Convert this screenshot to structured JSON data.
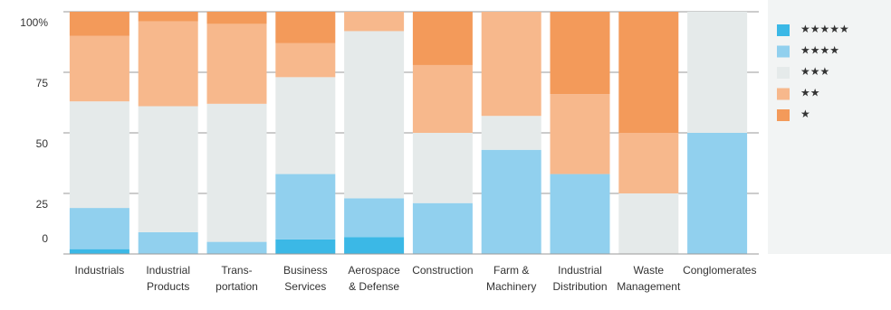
{
  "chart_data": {
    "type": "stacked_bar",
    "categories": [
      "Industrials",
      "Industrial\nProducts",
      "Trans-\nportation",
      "Business\nServices",
      "Aerospace\n& Defense",
      "Construction",
      "Farm &\nMachinery",
      "Industrial\nDistribution",
      "Waste\nManagement",
      "Conglomerates"
    ],
    "series": [
      {
        "name": "★★★★★",
        "color": "#3bb8e6",
        "values": [
          2,
          0,
          0,
          6,
          7,
          0,
          0,
          0,
          0,
          0
        ]
      },
      {
        "name": "★★★★",
        "color": "#91d0ee",
        "values": [
          17,
          9,
          5,
          27,
          16,
          21,
          43,
          33,
          0,
          50
        ]
      },
      {
        "name": "★★★",
        "color": "#e5eaea",
        "values": [
          44,
          52,
          57,
          40,
          69,
          29,
          14,
          0,
          25,
          50
        ]
      },
      {
        "name": "★★",
        "color": "#f7b88c",
        "values": [
          27,
          35,
          33,
          14,
          8,
          28,
          43,
          33,
          25,
          0
        ]
      },
      {
        "name": "★",
        "color": "#f39a5a",
        "values": [
          10,
          4,
          5,
          13,
          0,
          22,
          0,
          34,
          50,
          0
        ]
      }
    ],
    "ylim": [
      0,
      100
    ],
    "yticks": [
      0,
      25,
      50,
      75,
      {
        "value": 100,
        "label": "100%"
      }
    ],
    "grid": true
  }
}
